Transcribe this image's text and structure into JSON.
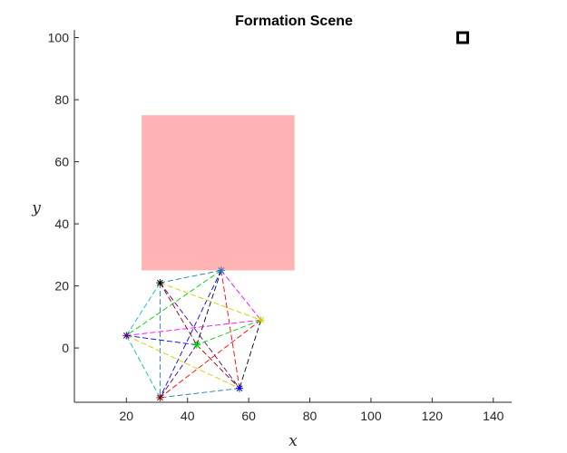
{
  "chart_data": {
    "type": "scatter",
    "title": "Formation Scene",
    "xlabel": "x",
    "ylabel": "y",
    "xlim": [
      3,
      146
    ],
    "ylim": [
      -17.5,
      102.5
    ],
    "x_ticks": [
      20,
      40,
      60,
      80,
      100,
      120,
      140
    ],
    "y_ticks": [
      0,
      20,
      40,
      60,
      80,
      100
    ],
    "grid": false,
    "obstacle": {
      "x": [
        25,
        75
      ],
      "y": [
        25,
        75
      ],
      "color": "#ffb3b3"
    },
    "target": {
      "x": 130,
      "y": 100,
      "marker": "square",
      "color": "#000000"
    },
    "agents": [
      {
        "x": 51,
        "y": 25
      },
      {
        "x": 31,
        "y": 21
      },
      {
        "x": 64,
        "y": 9
      },
      {
        "x": 20,
        "y": 4
      },
      {
        "x": 43,
        "y": 1
      },
      {
        "x": 57,
        "y": -13
      },
      {
        "x": 31,
        "y": -16
      }
    ],
    "edge_colors": [
      "#1f77b4",
      "#ff00ff",
      "#00cc00",
      "#000000",
      "#ff0000",
      "#0000ff",
      "#cccc00",
      "#00bfbf",
      "#8b0000",
      "#4b0082"
    ]
  }
}
